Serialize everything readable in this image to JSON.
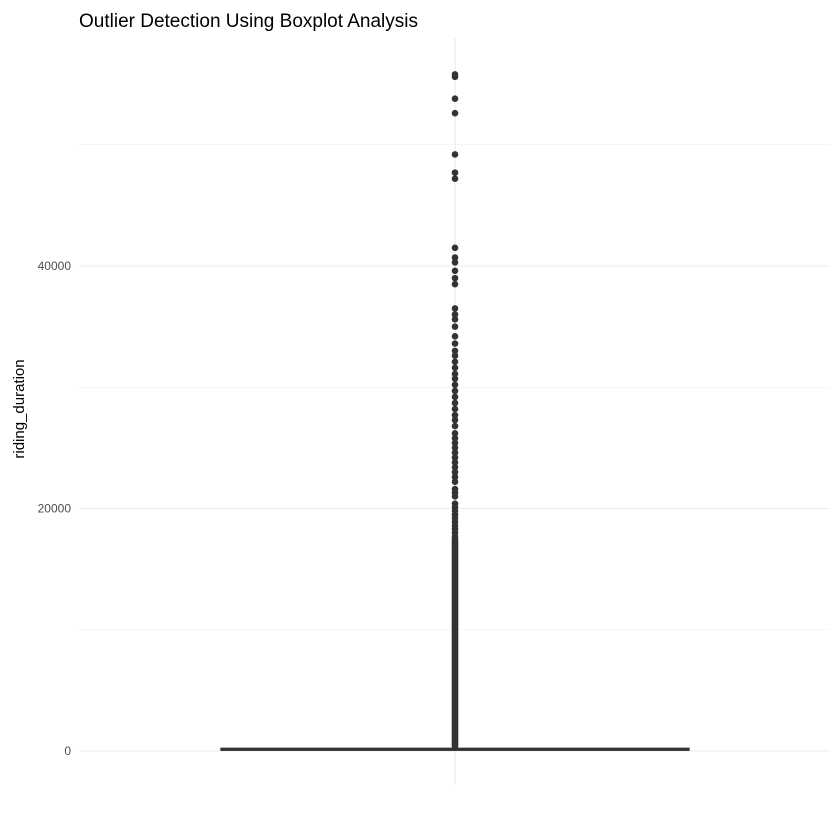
{
  "chart_data": {
    "type": "boxplot",
    "title": "Outlier Detection Using Boxplot Analysis",
    "xlabel": "",
    "ylabel": "riding_duration",
    "ylim": [
      -2500,
      58000
    ],
    "y_ticks": [
      0,
      20000,
      40000
    ],
    "grid": true,
    "legend": "none",
    "colors": {
      "box": "#333333",
      "grid": "#ebebeb",
      "tick_text": "#4d4d4d"
    },
    "box": {
      "min": 0,
      "q1": 100,
      "median": 150,
      "q3": 200,
      "whisker_high": 400
    },
    "outliers_dense_range": [
      400,
      17500
    ],
    "outliers": [
      17700,
      18000,
      18300,
      18600,
      18900,
      19200,
      19500,
      19800,
      20100,
      20400,
      21000,
      21300,
      21600,
      22200,
      22600,
      23000,
      23400,
      23800,
      24200,
      24600,
      25000,
      25400,
      25800,
      26200,
      26800,
      27300,
      27700,
      28200,
      28700,
      29200,
      29700,
      30200,
      30700,
      31100,
      31600,
      32100,
      32600,
      33000,
      33600,
      34200,
      35000,
      35600,
      36000,
      36500,
      38500,
      39000,
      39600,
      40300,
      40700,
      41500,
      47200,
      47700,
      49200,
      52600,
      53800,
      55600,
      55800
    ]
  }
}
